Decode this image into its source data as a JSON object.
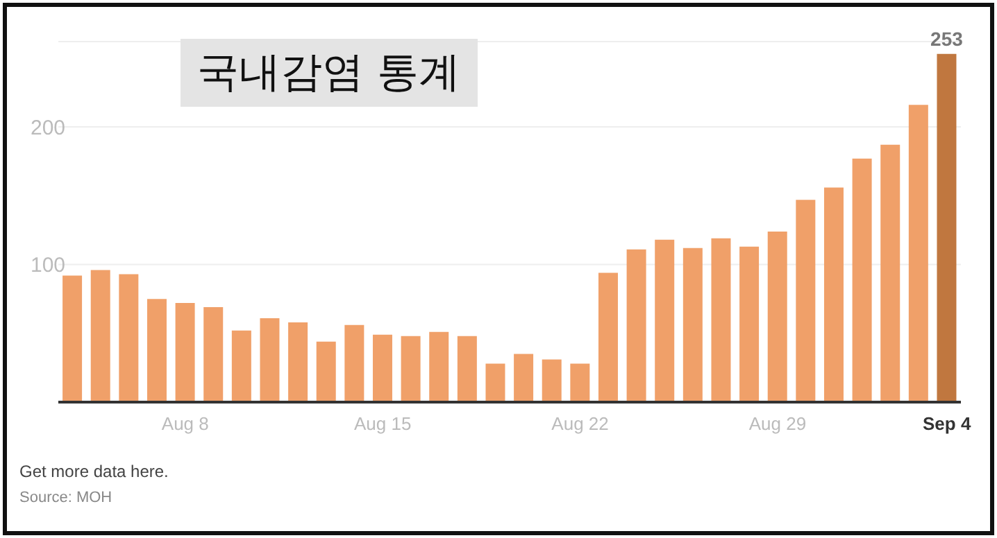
{
  "chart_data": {
    "type": "bar",
    "title": "국내감염 통계",
    "categories": [
      null,
      null,
      null,
      null,
      "Aug 8",
      null,
      null,
      null,
      null,
      null,
      null,
      "Aug 15",
      null,
      null,
      null,
      null,
      null,
      null,
      "Aug 22",
      null,
      null,
      null,
      null,
      null,
      null,
      "Aug 29",
      null,
      null,
      null,
      null,
      null,
      "Sep 4"
    ],
    "values": [
      92,
      96,
      93,
      75,
      72,
      69,
      52,
      61,
      58,
      44,
      56,
      49,
      48,
      51,
      48,
      28,
      35,
      31,
      28,
      94,
      111,
      118,
      112,
      119,
      113,
      124,
      147,
      156,
      177,
      187,
      216,
      253
    ],
    "colors": [
      "#f0a069",
      "#f0a069",
      "#f0a069",
      "#f0a069",
      "#f0a069",
      "#f0a069",
      "#f0a069",
      "#f0a069",
      "#f0a069",
      "#f0a069",
      "#f0a069",
      "#f0a069",
      "#f0a069",
      "#f0a069",
      "#f0a069",
      "#f0a069",
      "#f0a069",
      "#f0a069",
      "#f0a069",
      "#f0a069",
      "#f0a069",
      "#f0a069",
      "#f0a069",
      "#f0a069",
      "#f0a069",
      "#f0a069",
      "#f0a069",
      "#f0a069",
      "#f0a069",
      "#f0a069",
      "#f0a069",
      "#c0773f"
    ],
    "value_labels": [
      null,
      null,
      null,
      null,
      null,
      null,
      null,
      null,
      null,
      null,
      null,
      null,
      null,
      null,
      null,
      null,
      null,
      null,
      null,
      null,
      null,
      null,
      null,
      null,
      null,
      null,
      null,
      null,
      null,
      null,
      null,
      "253"
    ],
    "ylim": [
      0,
      262
    ],
    "yticks": [
      100,
      200
    ],
    "grid": "y",
    "annotations": [
      "Get more data here.",
      "Source: MOH"
    ]
  }
}
